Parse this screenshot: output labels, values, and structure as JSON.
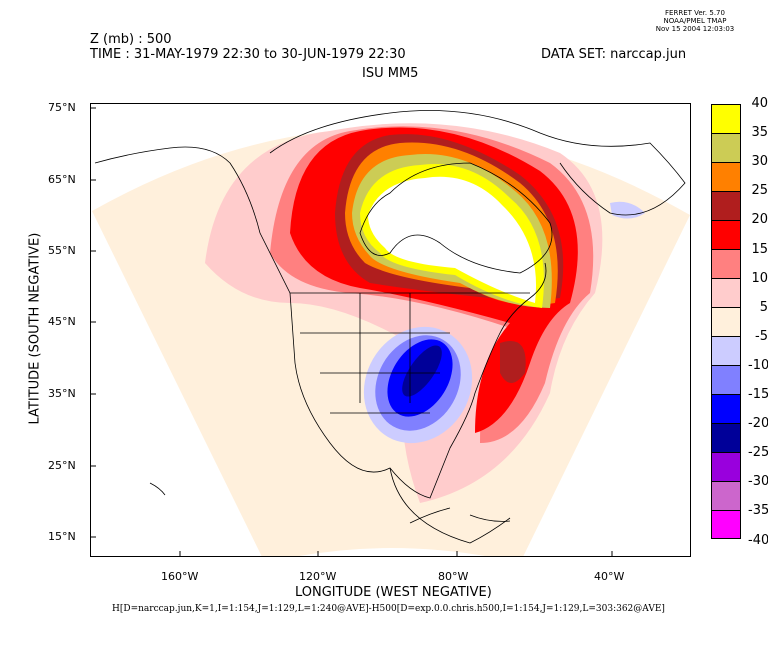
{
  "stamp": {
    "line1": "FERRET Ver. 5.70",
    "line2": "NOAA/PMEL TMAP",
    "line3": "Nov 15 2004 12:03:03"
  },
  "header": {
    "variable": "Z (mb) : 500",
    "time": "TIME : 31-MAY-1979 22:30 to 30-JUN-1979 22:30",
    "dataset": "DATA SET: narccap.jun",
    "subtitle": "ISU MM5"
  },
  "axes": {
    "xlabel": "LONGITUDE (WEST NEGATIVE)",
    "ylabel": "LATITUDE (SOUTH NEGATIVE)",
    "xticks": [
      "160°W",
      "120°W",
      "80°W",
      "40°W"
    ],
    "yticks": [
      "75°N",
      "65°N",
      "55°N",
      "45°N",
      "35°N",
      "25°N",
      "15°N"
    ]
  },
  "footer": "H[D=narccap.jun,K=1,I=1:154,J=1:129,L=1:240@AVE]-H500[D=exp.0.0.chris.h500,I=1:154,J=1:129,L=303:362@AVE]",
  "colorbar": {
    "labels": [
      "40",
      "35",
      "30",
      "25",
      "20",
      "15",
      "10",
      "5",
      "-5",
      "-10",
      "-15",
      "-20",
      "-25",
      "-30",
      "-35",
      "-40"
    ],
    "colors": [
      "#ffff00",
      "#cccc55",
      "#ff8000",
      "#b01e1e",
      "#ff0000",
      "#ff8080",
      "#ffcccc",
      "#fff0dc",
      "#ccccff",
      "#8080ff",
      "#0000ff",
      "#000099",
      "#9900dd",
      "#cc66cc",
      "#ff00ff"
    ]
  }
}
